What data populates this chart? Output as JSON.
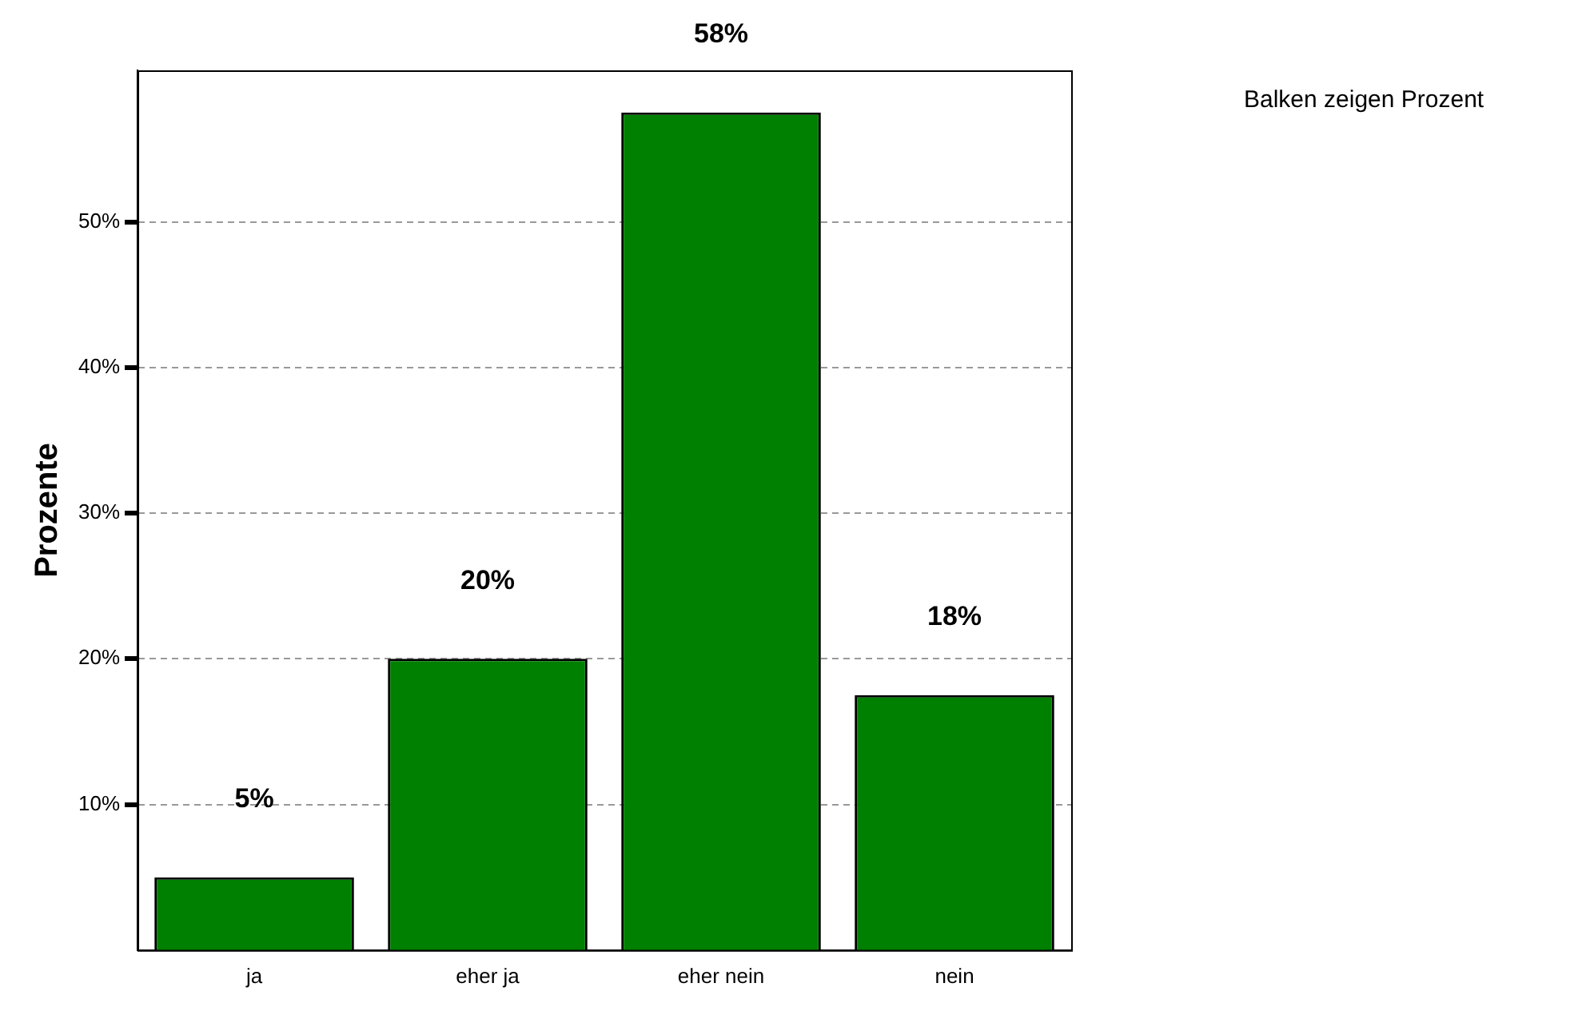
{
  "chart_data": {
    "type": "bar",
    "ylabel": "Prozente",
    "categories": [
      "ja",
      "eher ja",
      "eher nein",
      "nein"
    ],
    "values": [
      5,
      20,
      57.5,
      17.5
    ],
    "value_labels": [
      "5%",
      "20%",
      "58%",
      "18%"
    ],
    "color": "#008000",
    "ylim": [
      0,
      60.4
    ],
    "yticks": [
      {
        "value": 10,
        "label": "10%"
      },
      {
        "value": 20,
        "label": "20%"
      },
      {
        "value": 30,
        "label": "30%"
      },
      {
        "value": 40,
        "label": "40%"
      },
      {
        "value": 50,
        "label": "50%"
      }
    ],
    "grid": "y",
    "annotations": [
      "Balken zeigen Prozent"
    ]
  }
}
